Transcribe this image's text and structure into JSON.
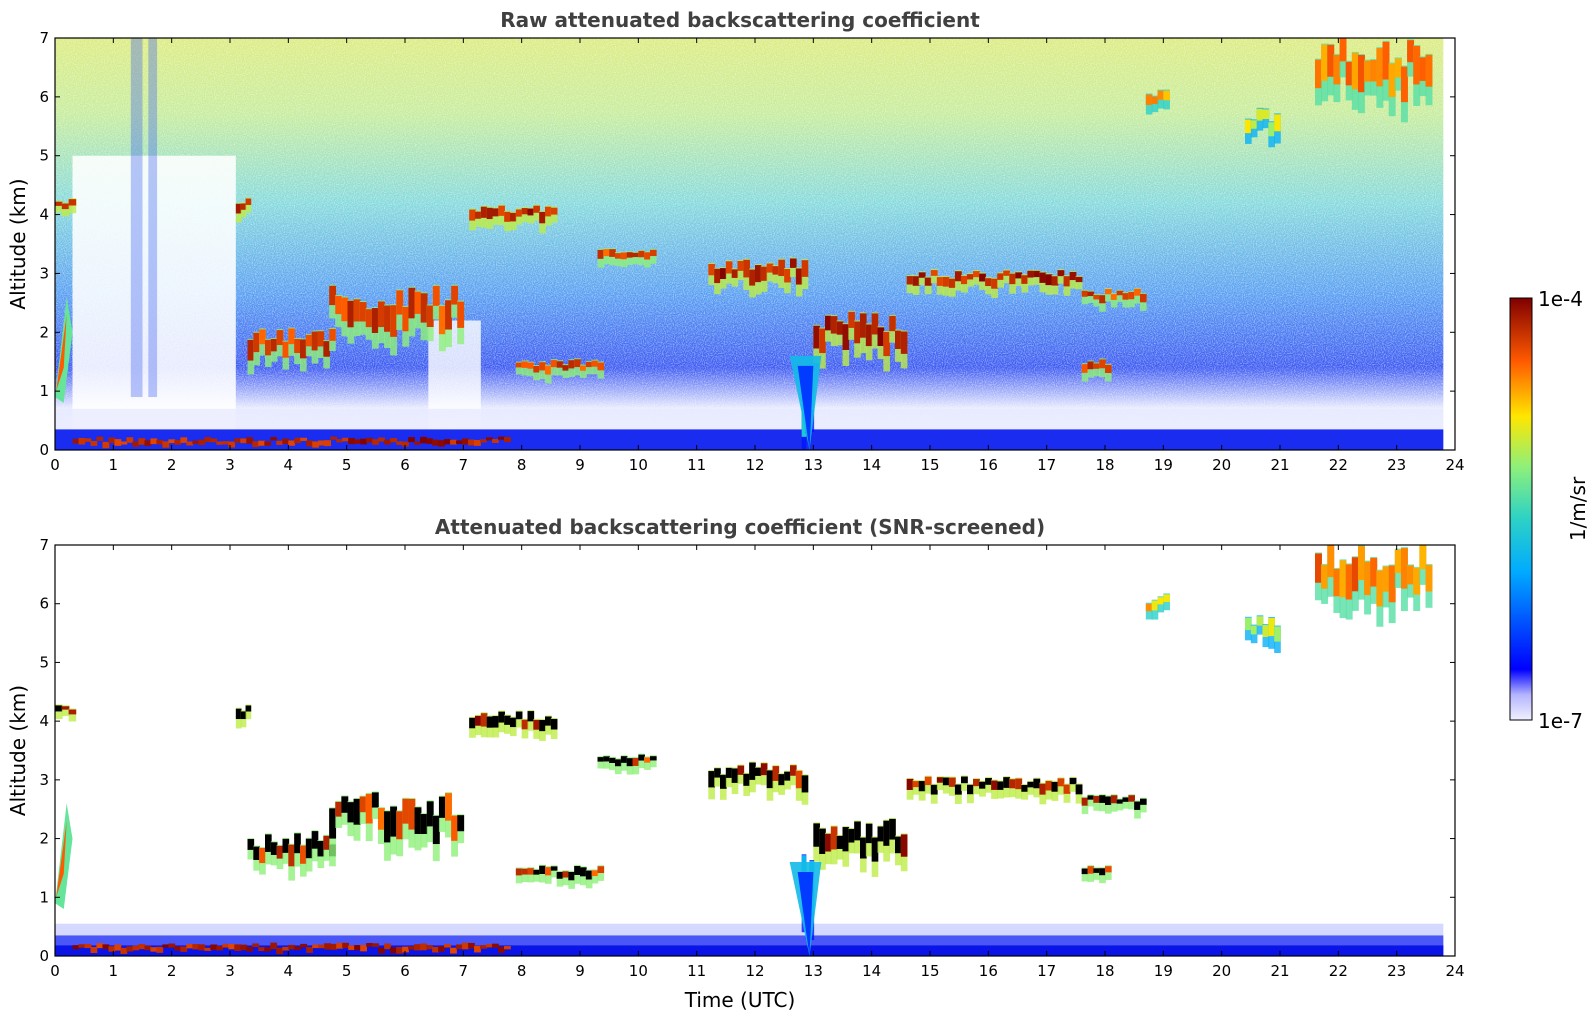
{
  "chart_data": [
    {
      "type": "heatmap",
      "title": "Raw attenuated backscattering coefficient",
      "xlabel": "",
      "ylabel": "Altitude (km)",
      "xlim": [
        0,
        24
      ],
      "ylim": [
        0,
        7
      ],
      "xticks": [
        "0",
        "1",
        "2",
        "3",
        "4",
        "5",
        "6",
        "7",
        "8",
        "9",
        "10",
        "11",
        "12",
        "13",
        "14",
        "15",
        "16",
        "17",
        "18",
        "19",
        "20",
        "21",
        "22",
        "23",
        "24"
      ],
      "yticks": [
        "0",
        "1",
        "2",
        "3",
        "4",
        "5",
        "6",
        "7"
      ],
      "data_end_time": 23.8,
      "scale": "log",
      "colormap": "jet",
      "features": [
        {
          "kind": "cloud_layer",
          "t": [
            0.0,
            0.35
          ],
          "alt": [
            4.1,
            4.25
          ],
          "level": 1.0
        },
        {
          "kind": "cloud_layer",
          "t": [
            3.1,
            3.35
          ],
          "alt": [
            4.0,
            4.25
          ],
          "level": 1.0
        },
        {
          "kind": "cloud_layer",
          "t": [
            3.3,
            4.8
          ],
          "alt": [
            1.5,
            2.0
          ],
          "level": 0.95
        },
        {
          "kind": "cloud_layer",
          "t": [
            4.7,
            7.0
          ],
          "alt": [
            1.9,
            2.6
          ],
          "level": 0.95
        },
        {
          "kind": "cloud_layer",
          "t": [
            7.1,
            8.6
          ],
          "alt": [
            3.8,
            4.1
          ],
          "level": 1.0
        },
        {
          "kind": "cloud_layer",
          "t": [
            9.3,
            10.3
          ],
          "alt": [
            3.2,
            3.4
          ],
          "level": 0.95
        },
        {
          "kind": "cloud_layer",
          "t": [
            11.2,
            12.9
          ],
          "alt": [
            2.8,
            3.2
          ],
          "level": 1.0
        },
        {
          "kind": "cloud_layer",
          "t": [
            13.0,
            14.6
          ],
          "alt": [
            1.6,
            2.2
          ],
          "level": 1.0
        },
        {
          "kind": "cloud_layer",
          "t": [
            14.6,
            17.6
          ],
          "alt": [
            2.75,
            3.0
          ],
          "level": 1.0
        },
        {
          "kind": "cloud_layer",
          "t": [
            17.6,
            18.7
          ],
          "alt": [
            2.5,
            2.7
          ],
          "level": 0.95
        },
        {
          "kind": "cloud_layer",
          "t": [
            7.9,
            9.4
          ],
          "alt": [
            1.3,
            1.5
          ],
          "level": 0.95
        },
        {
          "kind": "cloud_layer",
          "t": [
            17.6,
            18.1
          ],
          "alt": [
            1.3,
            1.5
          ],
          "level": 0.95
        },
        {
          "kind": "cirrus",
          "t": [
            18.7,
            19.1
          ],
          "alt": [
            5.8,
            6.1
          ],
          "level": 0.82
        },
        {
          "kind": "cirrus",
          "t": [
            20.4,
            21.0
          ],
          "alt": [
            5.3,
            5.7
          ],
          "level": 0.72
        },
        {
          "kind": "cirrus",
          "t": [
            21.6,
            23.6
          ],
          "alt": [
            5.9,
            6.8
          ],
          "level": 0.88
        },
        {
          "kind": "boundary_layer",
          "t": [
            0.3,
            7.8
          ],
          "alt": [
            0.05,
            0.2
          ],
          "level": 1.0
        },
        {
          "kind": "precip_fallstreak",
          "t": [
            12.8,
            13.0
          ],
          "alt": [
            0.0,
            1.6
          ],
          "level": 0.5
        }
      ]
    },
    {
      "type": "heatmap",
      "title": "Attenuated backscattering coefficient (SNR-screened)",
      "xlabel": "Time (UTC)",
      "ylabel": "Altitude (km)",
      "xlim": [
        0,
        24
      ],
      "ylim": [
        0,
        7
      ],
      "xticks": [
        "0",
        "1",
        "2",
        "3",
        "4",
        "5",
        "6",
        "7",
        "8",
        "9",
        "10",
        "11",
        "12",
        "13",
        "14",
        "15",
        "16",
        "17",
        "18",
        "19",
        "20",
        "21",
        "22",
        "23",
        "24"
      ],
      "yticks": [
        "0",
        "1",
        "2",
        "3",
        "4",
        "5",
        "6",
        "7"
      ],
      "data_end_time": 23.8,
      "scale": "log",
      "colormap": "jet",
      "screened": true
    }
  ],
  "colorbar": {
    "max_label": "1e-4",
    "min_label": "1e-7",
    "unit_label": "1/m/sr"
  }
}
